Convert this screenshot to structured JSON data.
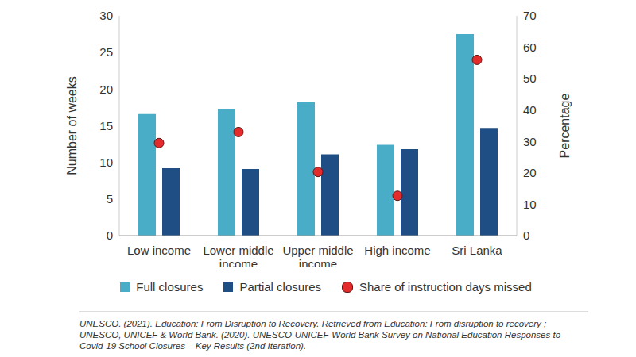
{
  "chart_data": {
    "type": "bar",
    "categories": [
      "Low income",
      "Lower middle income",
      "Upper middle income",
      "High income",
      "Sri Lanka"
    ],
    "series": [
      {
        "name": "Full closures",
        "color": "#4aadc8",
        "values": [
          16.6,
          17.3,
          18.2,
          12.4,
          27.5
        ]
      },
      {
        "name": "Partial closures",
        "color": "#1f4e85",
        "values": [
          9.2,
          9.1,
          11.1,
          11.8,
          14.7
        ]
      },
      {
        "name": "Share of instruction days missed",
        "type": "scatter",
        "axis": "y2",
        "color": "#e32b2b",
        "marker": "circle",
        "values": [
          29.5,
          33,
          20.3,
          12.7,
          56
        ]
      }
    ],
    "y_label": "Number of weeks",
    "y2_label": "Percentage",
    "ylim": [
      0,
      30
    ],
    "yticks": [
      0,
      5,
      10,
      15,
      20,
      25,
      30
    ],
    "y2lim": [
      0,
      70
    ],
    "y2ticks": [
      0,
      10,
      20,
      30,
      40,
      50,
      60,
      70
    ],
    "grid": false,
    "legend": "bottom",
    "source": "UNESCO. (2021). Education: From Disruption to Recovery. Retrieved from Education: From disruption to recovery ; UNESCO, UNICEF & World Bank. (2020). UNESCO-UNICEF-World Bank Survey on National Education Responses to Covid-19 School Closures – Key Results (2nd Iteration)."
  }
}
